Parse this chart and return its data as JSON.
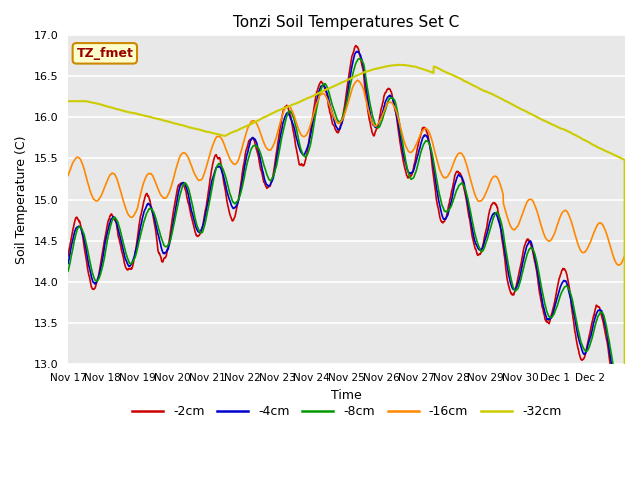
{
  "title": "Tonzi Soil Temperatures Set C",
  "xlabel": "Time",
  "ylabel": "Soil Temperature (C)",
  "ylim": [
    13.0,
    17.0
  ],
  "yticks": [
    13.0,
    13.5,
    14.0,
    14.5,
    15.0,
    15.5,
    16.0,
    16.5,
    17.0
  ],
  "series": [
    "-2cm",
    "-4cm",
    "-8cm",
    "-16cm",
    "-32cm"
  ],
  "colors": [
    "#cc0000",
    "#0000cc",
    "#009900",
    "#ff8800",
    "#cccc00"
  ],
  "linewidths": [
    1.2,
    1.2,
    1.2,
    1.2,
    1.5
  ],
  "bg_color": "#e8e8e8",
  "annotation_text": "TZ_fmet",
  "annotation_bg": "#ffffcc",
  "annotation_border": "#cc8800",
  "annotation_text_color": "#990000",
  "xtick_labels": [
    "Nov 17",
    "Nov 18",
    "Nov 19",
    "Nov 20",
    "Nov 21",
    "Nov 22",
    "Nov 23",
    "Nov 24",
    "Nov 25",
    "Nov 26",
    "Nov 27",
    "Nov 28",
    "Nov 29",
    "Nov 30",
    "Dec 1",
    "Dec 2"
  ],
  "n_points": 1600,
  "start_day": 0,
  "end_day": 16
}
